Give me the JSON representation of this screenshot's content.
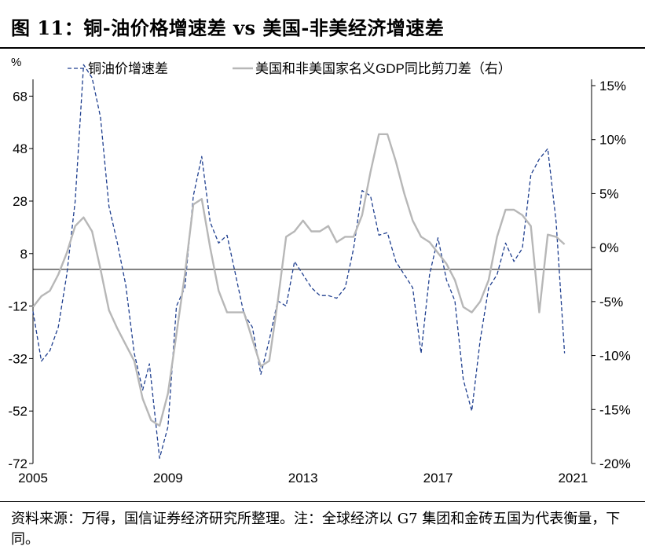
{
  "page": {
    "title": "图 11：铜-油价格增速差 vs 美国-非美经济增速差",
    "source_note": "资料来源：万得，国信证券经济研究所整理。注：全球经济以 G7 集团和金砖五国为代表衡量，下同。"
  },
  "chart_data": {
    "type": "line",
    "left_unit": "%",
    "x_ticks": [
      "2005",
      "2009",
      "2013",
      "2017",
      "2021"
    ],
    "x_range": [
      2005.0,
      2021.55
    ],
    "y_left": {
      "range": [
        -72,
        72
      ],
      "ticks": [
        68,
        48,
        28,
        8,
        -12,
        -32,
        -52,
        -72
      ]
    },
    "y_right": {
      "range": [
        -20,
        15
      ],
      "ticks": [
        "15%",
        "10%",
        "5%",
        "0%",
        "-5%",
        "-10%",
        "-15%",
        "-20%"
      ],
      "tick_values": [
        15,
        10,
        5,
        0,
        -5,
        -10,
        -15,
        -20
      ]
    },
    "zero_line_left": 2,
    "legend_position": "top",
    "series": [
      {
        "name": "铜油价增速差",
        "axis": "left",
        "color": "#1f3f8f",
        "style": "dashed",
        "points": [
          [
            2005.0,
            -14
          ],
          [
            2005.25,
            -33
          ],
          [
            2005.5,
            -29
          ],
          [
            2005.75,
            -20
          ],
          [
            2006.0,
            0
          ],
          [
            2006.25,
            28
          ],
          [
            2006.5,
            80
          ],
          [
            2006.75,
            75
          ],
          [
            2007.0,
            60
          ],
          [
            2007.25,
            26
          ],
          [
            2007.5,
            12
          ],
          [
            2007.75,
            -4
          ],
          [
            2008.0,
            -30
          ],
          [
            2008.25,
            -44
          ],
          [
            2008.45,
            -34
          ],
          [
            2008.75,
            -70
          ],
          [
            2009.0,
            -58
          ],
          [
            2009.25,
            -12
          ],
          [
            2009.5,
            -5
          ],
          [
            2009.75,
            30
          ],
          [
            2010.0,
            45
          ],
          [
            2010.25,
            20
          ],
          [
            2010.5,
            12
          ],
          [
            2010.75,
            15
          ],
          [
            2011.0,
            0
          ],
          [
            2011.25,
            -15
          ],
          [
            2011.5,
            -20
          ],
          [
            2011.75,
            -38
          ],
          [
            2012.0,
            -25
          ],
          [
            2012.25,
            -10
          ],
          [
            2012.5,
            -12
          ],
          [
            2012.75,
            5
          ],
          [
            2013.0,
            0
          ],
          [
            2013.25,
            -5
          ],
          [
            2013.5,
            -8
          ],
          [
            2013.75,
            -8
          ],
          [
            2014.0,
            -9
          ],
          [
            2014.25,
            -5
          ],
          [
            2014.5,
            10
          ],
          [
            2014.75,
            32
          ],
          [
            2015.0,
            30
          ],
          [
            2015.25,
            15
          ],
          [
            2015.5,
            16
          ],
          [
            2015.75,
            5
          ],
          [
            2016.0,
            0
          ],
          [
            2016.25,
            -5
          ],
          [
            2016.5,
            -30
          ],
          [
            2016.75,
            0
          ],
          [
            2017.0,
            14
          ],
          [
            2017.25,
            -2
          ],
          [
            2017.5,
            -10
          ],
          [
            2017.75,
            -40
          ],
          [
            2018.0,
            -52
          ],
          [
            2018.25,
            -25
          ],
          [
            2018.5,
            -5
          ],
          [
            2018.75,
            0
          ],
          [
            2019.0,
            12
          ],
          [
            2019.25,
            5
          ],
          [
            2019.5,
            10
          ],
          [
            2019.75,
            38
          ],
          [
            2020.0,
            44
          ],
          [
            2020.25,
            48
          ],
          [
            2020.5,
            20
          ],
          [
            2020.75,
            -30
          ]
        ]
      },
      {
        "name": "美国和非美国家名义GDP同比剪刀差（右）",
        "axis": "right",
        "color": "#b7b7b7",
        "style": "solid",
        "points": [
          [
            2005.0,
            -5.5
          ],
          [
            2005.25,
            -4.5
          ],
          [
            2005.5,
            -4.0
          ],
          [
            2005.75,
            -2.5
          ],
          [
            2006.0,
            -0.5
          ],
          [
            2006.25,
            2.0
          ],
          [
            2006.5,
            2.8
          ],
          [
            2006.75,
            1.5
          ],
          [
            2007.0,
            -2.0
          ],
          [
            2007.25,
            -5.8
          ],
          [
            2007.5,
            -7.5
          ],
          [
            2007.75,
            -9.0
          ],
          [
            2008.0,
            -10.5
          ],
          [
            2008.25,
            -14.0
          ],
          [
            2008.5,
            -16.0
          ],
          [
            2008.75,
            -16.5
          ],
          [
            2009.0,
            -13.5
          ],
          [
            2009.25,
            -8.0
          ],
          [
            2009.5,
            -2.5
          ],
          [
            2009.75,
            4.0
          ],
          [
            2010.0,
            4.5
          ],
          [
            2010.25,
            0.0
          ],
          [
            2010.5,
            -4.0
          ],
          [
            2010.75,
            -6.0
          ],
          [
            2011.0,
            -6.0
          ],
          [
            2011.25,
            -6.0
          ],
          [
            2011.5,
            -8.5
          ],
          [
            2011.75,
            -11.0
          ],
          [
            2012.0,
            -10.5
          ],
          [
            2012.25,
            -5.0
          ],
          [
            2012.5,
            1.0
          ],
          [
            2012.75,
            1.5
          ],
          [
            2013.0,
            2.5
          ],
          [
            2013.25,
            1.5
          ],
          [
            2013.5,
            1.5
          ],
          [
            2013.75,
            2.0
          ],
          [
            2014.0,
            0.5
          ],
          [
            2014.25,
            1.0
          ],
          [
            2014.5,
            1.0
          ],
          [
            2014.75,
            3.0
          ],
          [
            2015.0,
            7.0
          ],
          [
            2015.25,
            10.5
          ],
          [
            2015.5,
            10.5
          ],
          [
            2015.75,
            8.0
          ],
          [
            2016.0,
            5.0
          ],
          [
            2016.25,
            2.5
          ],
          [
            2016.5,
            1.0
          ],
          [
            2016.75,
            0.5
          ],
          [
            2017.0,
            -0.5
          ],
          [
            2017.25,
            -1.5
          ],
          [
            2017.5,
            -3.0
          ],
          [
            2017.75,
            -5.5
          ],
          [
            2018.0,
            -6.0
          ],
          [
            2018.25,
            -5.0
          ],
          [
            2018.5,
            -3.0
          ],
          [
            2018.75,
            1.0
          ],
          [
            2019.0,
            3.5
          ],
          [
            2019.25,
            3.5
          ],
          [
            2019.5,
            3.0
          ],
          [
            2019.75,
            2.0
          ],
          [
            2020.0,
            -6.0
          ],
          [
            2020.25,
            1.2
          ],
          [
            2020.5,
            1.0
          ],
          [
            2020.75,
            0.3
          ]
        ]
      }
    ]
  }
}
